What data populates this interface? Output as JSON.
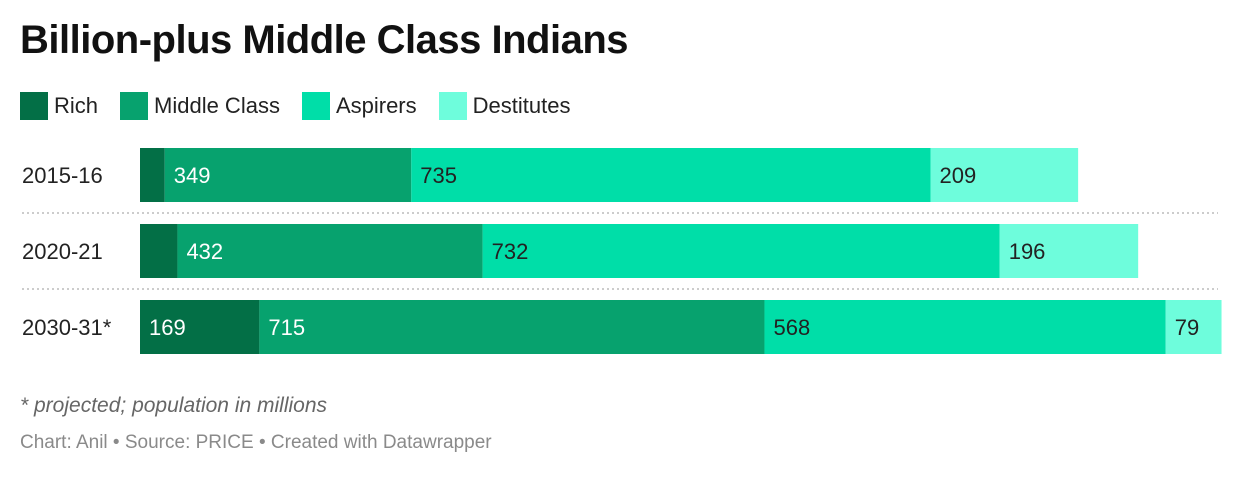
{
  "title": "Billion-plus Middle Class Indians",
  "note": "* projected; population in millions",
  "footer": "Chart: Anil • Source: PRICE • Created with Datawrapper",
  "chart_data": {
    "type": "bar",
    "orientation": "horizontal",
    "stacked": true,
    "categories": [
      "2015-16",
      "2020-21",
      "2030-31*"
    ],
    "series": [
      {
        "name": "Rich",
        "color": "#036f46",
        "values": [
          35,
          53,
          169
        ],
        "labels": [
          "",
          "",
          "169"
        ],
        "label_color": "light"
      },
      {
        "name": "Middle Class",
        "color": "#07a26e",
        "values": [
          349,
          432,
          715
        ],
        "labels": [
          "349",
          "432",
          "715"
        ],
        "label_color": "light"
      },
      {
        "name": "Aspirers",
        "color": "#00dea8",
        "values": [
          735,
          732,
          568
        ],
        "labels": [
          "735",
          "732",
          "568"
        ],
        "label_color": "dark"
      },
      {
        "name": "Destitutes",
        "color": "#6efddc",
        "values": [
          209,
          196,
          79
        ],
        "labels": [
          "209",
          "196",
          "79"
        ],
        "label_color": "dark"
      }
    ],
    "xlim": [
      0,
      1526
    ],
    "legend": "top-left",
    "grid": false
  }
}
